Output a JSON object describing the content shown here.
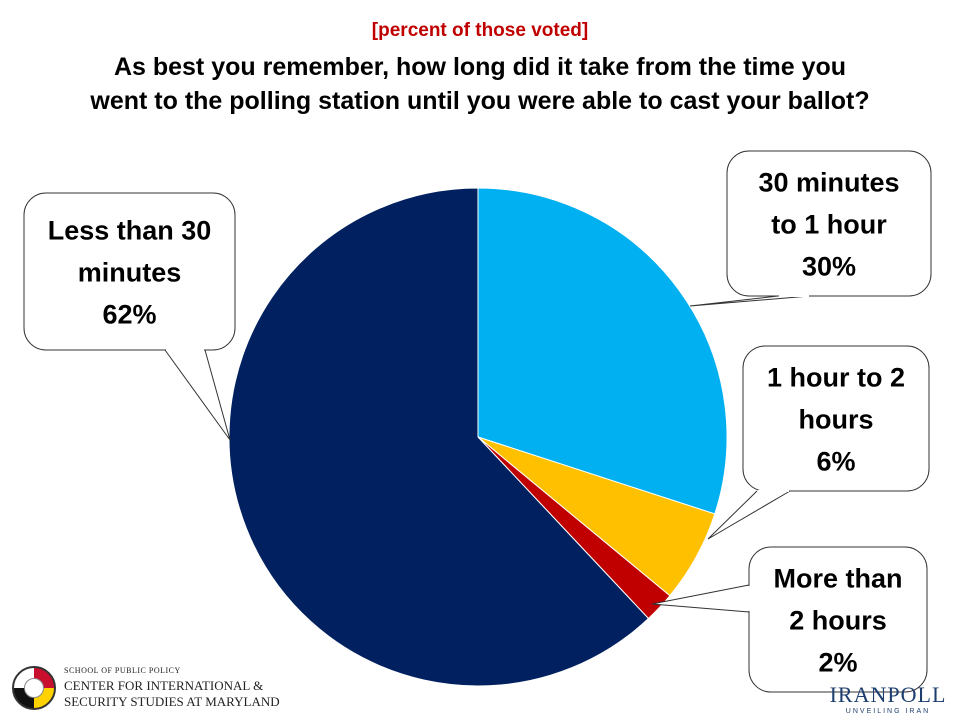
{
  "header": {
    "subtitle": "[percent of those voted]",
    "title_line1": "As best you remember, how long did it take from the time you",
    "title_line2": "went to the polling station until you were able to cast your ballot?"
  },
  "chart_data": {
    "type": "pie",
    "start_angle_deg": 0,
    "direction": "clockwise",
    "slices": [
      {
        "label": "30 minutes to 1 hour",
        "value": 30,
        "value_label": "30%",
        "color": "#00b0f0",
        "callout_lines": [
          "30 minutes",
          "to 1 hour",
          "30%"
        ]
      },
      {
        "label": "1 hour to 2 hours",
        "value": 6,
        "value_label": "6%",
        "color": "#ffc000",
        "callout_lines": [
          "1 hour to 2",
          "hours",
          "6%"
        ]
      },
      {
        "label": "More than 2 hours",
        "value": 2,
        "value_label": "2%",
        "color": "#c00000",
        "callout_lines": [
          "More than",
          "2 hours",
          "2%"
        ]
      },
      {
        "label": "Less than 30 minutes",
        "value": 62,
        "value_label": "62%",
        "color": "#002060",
        "callout_lines": [
          "Less than 30",
          "minutes",
          "62%"
        ]
      }
    ]
  },
  "footer": {
    "left_logo": {
      "line1": "SCHOOL OF PUBLIC POLICY",
      "line2": "CENTER FOR INTERNATIONAL &",
      "line3": "SECURITY STUDIES AT MARYLAND"
    },
    "right_logo": {
      "brand": "IRANPOLL",
      "tagline": "UNVEILING IRAN"
    }
  }
}
